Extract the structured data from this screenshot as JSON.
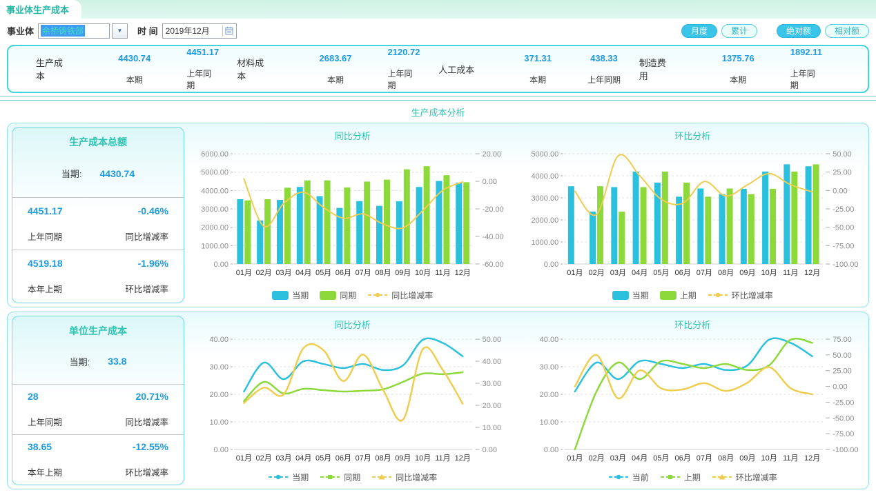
{
  "header": {
    "tab_title": "事业体生产成本"
  },
  "filters": {
    "unit_label": "事业体",
    "unit_value": "余桥铸铁部",
    "time_label": "时 间",
    "time_value": "2019年12月"
  },
  "toolbar": {
    "group1": [
      {
        "label": "月度",
        "active": true
      },
      {
        "label": "累计",
        "active": false
      }
    ],
    "group2": [
      {
        "label": "绝对额",
        "active": true
      },
      {
        "label": "相对额",
        "active": false
      }
    ],
    "active_color": "#3ac4e8",
    "inactive_color": "#e9fdf9"
  },
  "summary": {
    "groups": [
      {
        "label": "生产成本",
        "current": "4430.74",
        "current_label": "本期",
        "prev": "4451.17",
        "prev_label": "上年同期"
      },
      {
        "label": "材料成本",
        "current": "2683.67",
        "current_label": "本期",
        "prev": "2120.72",
        "prev_label": "上年同期"
      },
      {
        "label": "人工成本",
        "current": "371.31",
        "current_label": "本期",
        "prev": "438.33",
        "prev_label": "上年同期"
      },
      {
        "label": "制造费用",
        "current": "1375.76",
        "current_label": "本期",
        "prev": "1892.11",
        "prev_label": "上年同期"
      }
    ]
  },
  "section_title": "生产成本分析",
  "panels": [
    {
      "card": {
        "title": "生产成本总额",
        "current_label": "当期:",
        "current": "4430.74",
        "rows": [
          {
            "value": "4451.17",
            "value_label": "上年同期",
            "rate": "-0.46%",
            "rate_label": "同比增减率"
          },
          {
            "value": "4519.18",
            "value_label": "本年上期",
            "rate": "-1.96%",
            "rate_label": "环比增减率"
          }
        ]
      }
    },
    {
      "card": {
        "title": "单位生产成本",
        "current_label": "当期:",
        "current": "33.8",
        "rows": [
          {
            "value": "28",
            "value_label": "上年同期",
            "rate": "20.71%",
            "rate_label": "同比增减率"
          },
          {
            "value": "38.65",
            "value_label": "本年上期",
            "rate": "-12.55%",
            "rate_label": "环比增减率"
          }
        ]
      }
    }
  ],
  "chart_data": [
    {
      "type": "bar",
      "title": "同比分析",
      "categories": [
        "01月",
        "02月",
        "03月",
        "04月",
        "05月",
        "06月",
        "07月",
        "08月",
        "09月",
        "10月",
        "11月",
        "12月"
      ],
      "left_axis": {
        "min": 0,
        "max": 6000,
        "step": 1000
      },
      "right_axis": {
        "min": -60,
        "max": 20,
        "step": 20
      },
      "legend_position": "bottom",
      "grid": true,
      "series": [
        {
          "name": "当期",
          "type": "bar",
          "axis": "left",
          "color": "#2bc1de",
          "values": [
            3526,
            2372,
            3487,
            4192,
            3692,
            3051,
            3423,
            3167,
            3410,
            4192,
            4519,
            4430.74
          ]
        },
        {
          "name": "同期",
          "type": "bar",
          "axis": "left",
          "color": "#8dd93c",
          "values": [
            3462,
            3526,
            4154,
            4551,
            4551,
            4167,
            4487,
            4590,
            5154,
            5321,
            4833,
            4451.17
          ]
        },
        {
          "name": "同比增减率",
          "type": "line",
          "axis": "right",
          "color": "#efcd51",
          "marker": "circle",
          "values": [
            1.8,
            -32.7,
            -16.1,
            -7.9,
            -18.9,
            -26.8,
            -23.7,
            -31.0,
            -33.8,
            -21.2,
            -6.5,
            -0.46
          ]
        }
      ]
    },
    {
      "type": "bar",
      "title": "环比分析",
      "categories": [
        "01月",
        "02月",
        "03月",
        "04月",
        "05月",
        "06月",
        "07月",
        "08月",
        "09月",
        "10月",
        "11月",
        "12月"
      ],
      "left_axis": {
        "min": 0,
        "max": 5000,
        "step": 1000
      },
      "right_axis": {
        "min": -100,
        "max": 50,
        "step": 25
      },
      "legend_position": "bottom",
      "grid": true,
      "series": [
        {
          "name": "当期",
          "type": "bar",
          "axis": "left",
          "color": "#2bc1de",
          "values": [
            3526,
            2372,
            3487,
            4192,
            3692,
            3051,
            3423,
            3167,
            3410,
            4192,
            4519,
            4430.74
          ]
        },
        {
          "name": "上期",
          "type": "bar",
          "axis": "left",
          "color": "#8dd93c",
          "values": [
            0,
            3526,
            2372,
            3487,
            4192,
            3692,
            3051,
            3423,
            3167,
            3410,
            4192,
            4519.18
          ]
        },
        {
          "name": "环比增减率",
          "type": "line",
          "axis": "right",
          "color": "#efcd51",
          "marker": "circle",
          "values": [
            -1.0,
            -32.7,
            47.0,
            20.2,
            -11.9,
            -17.4,
            12.2,
            -7.5,
            7.7,
            22.9,
            7.8,
            -1.96
          ]
        }
      ]
    },
    {
      "type": "line",
      "title": "同比分析",
      "categories": [
        "01月",
        "02月",
        "03月",
        "04月",
        "05月",
        "06月",
        "07月",
        "08月",
        "09月",
        "10月",
        "11月",
        "12月"
      ],
      "left_axis": {
        "min": 0,
        "max": 40,
        "step": 10
      },
      "right_axis": {
        "min": 0,
        "max": 50,
        "step": 10
      },
      "legend_position": "bottom",
      "grid": true,
      "series": [
        {
          "name": "当期",
          "type": "line",
          "axis": "left",
          "color": "#2bc1de",
          "marker": "circle",
          "values": [
            21,
            31.5,
            25.5,
            32,
            31,
            29.5,
            31,
            28.8,
            30.5,
            39.8,
            38.65,
            33.8
          ]
        },
        {
          "name": "同期",
          "type": "line",
          "axis": "left",
          "color": "#8dd93c",
          "marker": "square",
          "values": [
            17.5,
            24.5,
            20.3,
            22,
            21.5,
            21,
            21.3,
            21.8,
            24.5,
            27.5,
            27.3,
            28
          ]
        },
        {
          "name": "同比增减率",
          "type": "line",
          "axis": "right",
          "color": "#efcd51",
          "marker": "triangle",
          "values": [
            21,
            28,
            25,
            46,
            45,
            31,
            43,
            27,
            13.5,
            45.5,
            36,
            20.71
          ]
        }
      ]
    },
    {
      "type": "line",
      "title": "环比分析",
      "categories": [
        "01月",
        "02月",
        "03月",
        "04月",
        "05月",
        "06月",
        "07月",
        "08月",
        "09月",
        "10月",
        "11月",
        "12月"
      ],
      "left_axis": {
        "min": 0,
        "max": 40,
        "step": 10
      },
      "right_axis": {
        "min": -100,
        "max": 75,
        "step": 25
      },
      "legend_position": "bottom",
      "grid": true,
      "series": [
        {
          "name": "当前",
          "type": "line",
          "axis": "left",
          "color": "#2bc1de",
          "marker": "circle",
          "values": [
            21,
            31.5,
            25.5,
            32,
            31,
            29.5,
            31,
            28.8,
            30.5,
            39.8,
            38.65,
            33.8
          ]
        },
        {
          "name": "上期",
          "type": "line",
          "axis": "left",
          "color": "#8dd93c",
          "marker": "square",
          "values": [
            0,
            21,
            31.5,
            25.5,
            32,
            31,
            29.5,
            31,
            28.8,
            30.5,
            39.8,
            38.65
          ]
        },
        {
          "name": "环比增减率",
          "type": "line",
          "axis": "right",
          "color": "#efcd51",
          "marker": "triangle",
          "values": [
            0,
            50,
            -19,
            25.5,
            -3.1,
            -4.8,
            5.1,
            -7.1,
            5.9,
            30.5,
            -2.9,
            -12.55
          ]
        }
      ]
    }
  ]
}
